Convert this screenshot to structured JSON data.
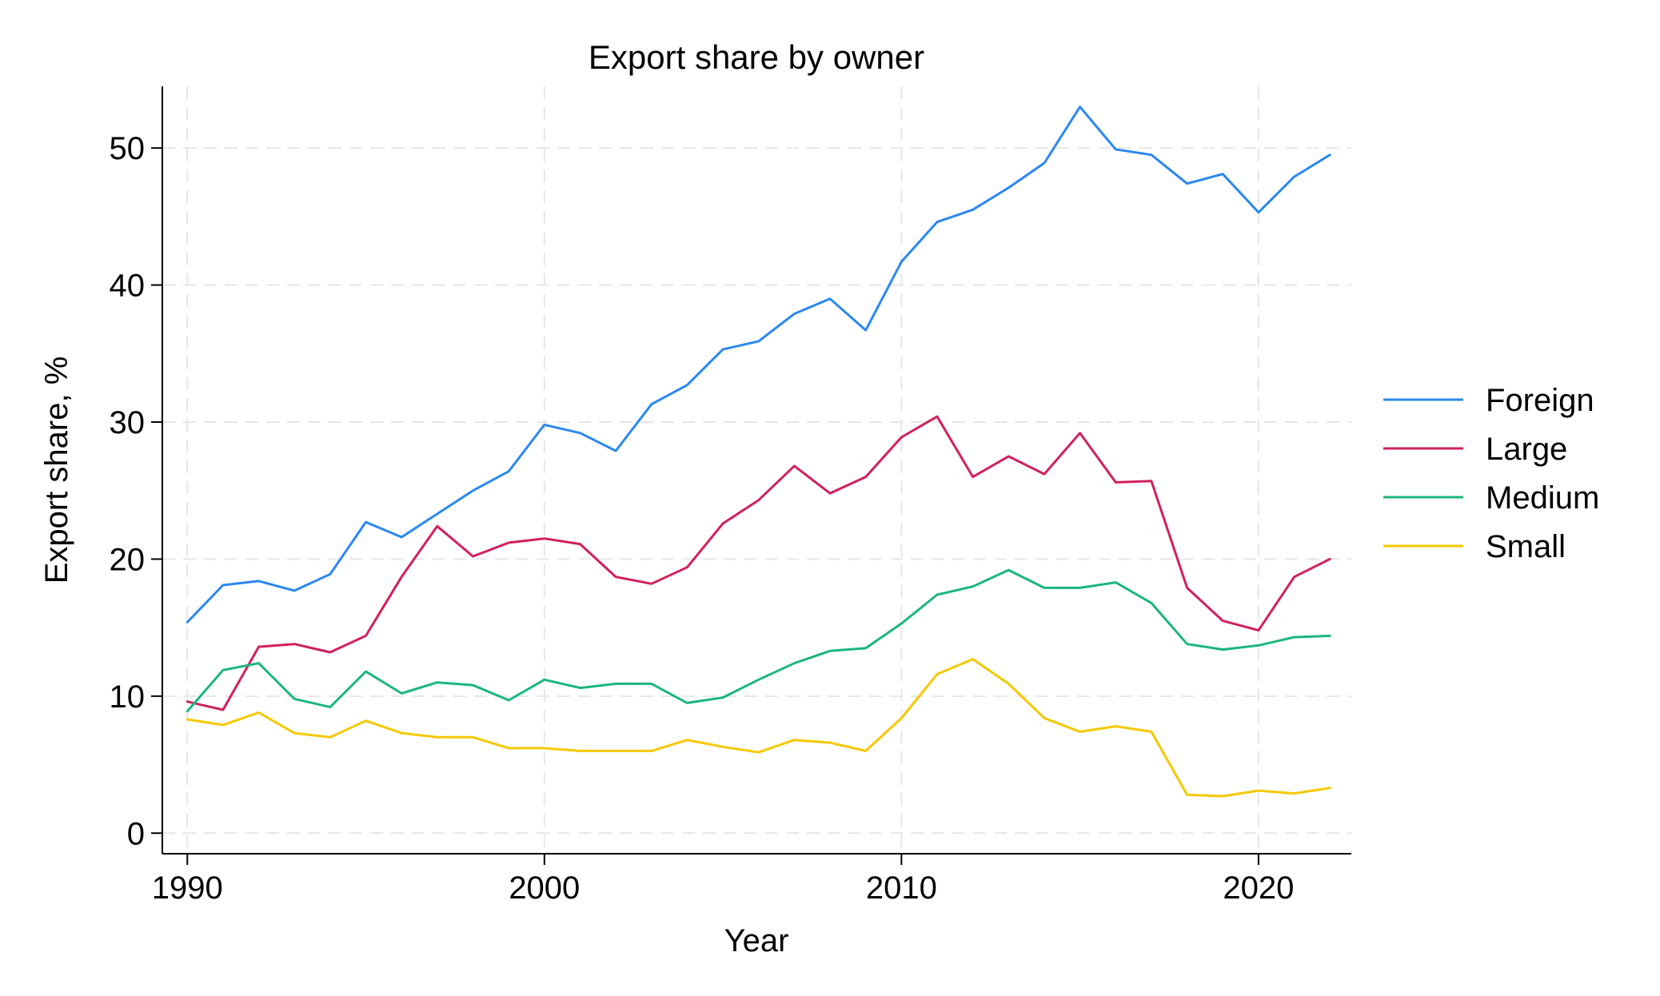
{
  "chart_data": {
    "type": "line",
    "title": "Export share by owner",
    "xlabel": "Year",
    "ylabel": "Export share, %",
    "xlim": [
      1989.3,
      2022.6
    ],
    "ylim": [
      -1.5,
      54.5
    ],
    "xticks": [
      1990,
      2000,
      2010,
      2020
    ],
    "yticks": [
      0,
      10,
      20,
      30,
      40,
      50
    ],
    "grid": true,
    "legend_position": "right",
    "x": [
      1990,
      1991,
      1992,
      1993,
      1994,
      1995,
      1996,
      1997,
      1998,
      1999,
      2000,
      2001,
      2002,
      2003,
      2004,
      2005,
      2006,
      2007,
      2008,
      2009,
      2010,
      2011,
      2012,
      2013,
      2014,
      2015,
      2016,
      2017,
      2018,
      2019,
      2020,
      2021,
      2022
    ],
    "series": [
      {
        "name": "Foreign",
        "color": "#2b88f0",
        "values": [
          15.4,
          18.1,
          18.4,
          17.7,
          18.9,
          22.7,
          21.6,
          23.3,
          25.0,
          26.4,
          29.8,
          29.2,
          27.9,
          31.3,
          32.7,
          35.3,
          35.9,
          37.9,
          39.0,
          36.7,
          41.7,
          44.6,
          45.5,
          47.1,
          48.9,
          53.0,
          49.9,
          49.5,
          47.4,
          48.1,
          45.3,
          47.9,
          49.5
        ]
      },
      {
        "name": "Large",
        "color": "#d1205a",
        "values": [
          9.6,
          9.0,
          13.6,
          13.8,
          13.2,
          14.4,
          18.7,
          22.4,
          20.2,
          21.2,
          21.5,
          21.1,
          18.7,
          18.2,
          19.4,
          22.6,
          24.3,
          26.8,
          24.8,
          26.0,
          28.9,
          30.4,
          26.0,
          27.5,
          26.2,
          29.2,
          25.6,
          25.7,
          17.9,
          15.5,
          14.8,
          18.7,
          20.0
        ]
      },
      {
        "name": "Medium",
        "color": "#1bb67b",
        "values": [
          8.9,
          11.9,
          12.4,
          9.8,
          9.2,
          11.8,
          10.2,
          11.0,
          10.8,
          9.7,
          11.2,
          10.6,
          10.9,
          10.9,
          9.5,
          9.9,
          11.2,
          12.4,
          13.3,
          13.5,
          15.3,
          17.4,
          18.0,
          19.2,
          17.9,
          17.9,
          18.3,
          16.8,
          13.8,
          13.4,
          13.7,
          14.3,
          14.4
        ]
      },
      {
        "name": "Small",
        "color": "#f5c800",
        "values": [
          8.3,
          7.9,
          8.8,
          7.3,
          7.0,
          8.2,
          7.3,
          7.0,
          7.0,
          6.2,
          6.2,
          6.0,
          6.0,
          6.0,
          6.8,
          6.3,
          5.9,
          6.8,
          6.6,
          6.0,
          8.4,
          11.6,
          12.7,
          10.9,
          8.4,
          7.4,
          7.8,
          7.4,
          2.8,
          2.7,
          3.1,
          2.9,
          3.3
        ]
      }
    ]
  }
}
